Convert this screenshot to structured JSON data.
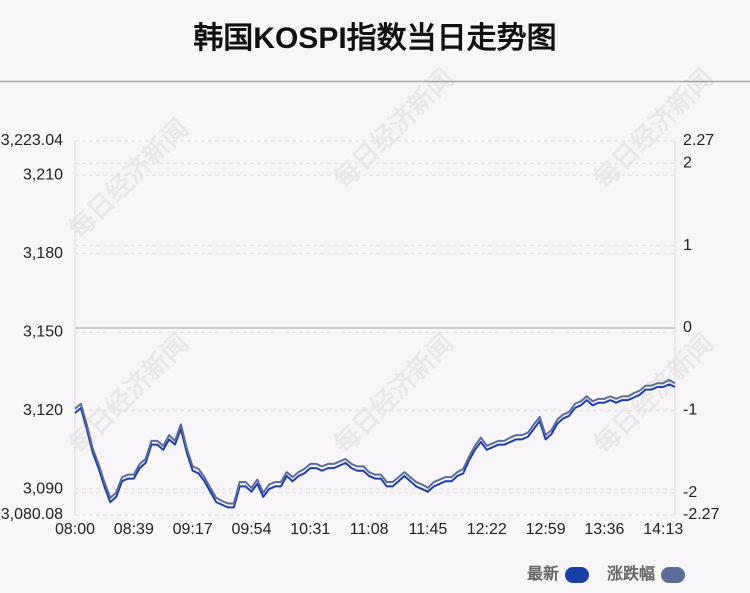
{
  "chart_data": {
    "type": "line",
    "title": "韩国KOSPI指数当日走势图",
    "watermark": "每日经济新闻",
    "categories": [
      "08:00",
      null,
      null,
      null,
      null,
      null,
      null,
      null,
      null,
      null,
      "08:39",
      null,
      null,
      null,
      null,
      null,
      null,
      null,
      null,
      null,
      "09:17",
      null,
      null,
      null,
      null,
      null,
      null,
      null,
      null,
      null,
      "09:54",
      null,
      null,
      null,
      null,
      null,
      null,
      null,
      null,
      null,
      "10:31",
      null,
      null,
      null,
      null,
      null,
      null,
      null,
      null,
      null,
      "11:08",
      null,
      null,
      null,
      null,
      null,
      null,
      null,
      null,
      null,
      "11:45",
      null,
      null,
      null,
      null,
      null,
      null,
      null,
      null,
      null,
      "12:22",
      null,
      null,
      null,
      null,
      null,
      null,
      null,
      null,
      null,
      "12:59",
      null,
      null,
      null,
      null,
      null,
      null,
      null,
      null,
      null,
      "13:36",
      null,
      null,
      null,
      null,
      null,
      null,
      null,
      null,
      null,
      "14:13",
      null,
      null
    ],
    "series": [
      {
        "name": "最新",
        "color": "#1a3fa8",
        "values": [
          3119,
          3121,
          3113,
          3104,
          3098,
          3091,
          3085,
          3087,
          3093,
          3094,
          3094,
          3098,
          3100,
          3107,
          3107,
          3105,
          3109,
          3107,
          3113,
          3104,
          3097,
          3096,
          3093,
          3089,
          3085,
          3084,
          3083,
          3083,
          3091,
          3091,
          3089,
          3092,
          3087,
          3090,
          3091,
          3091,
          3095,
          3093,
          3095,
          3096,
          3098,
          3098,
          3097,
          3098,
          3098,
          3099,
          3100,
          3098,
          3097,
          3097,
          3095,
          3094,
          3094,
          3091,
          3091,
          3093,
          3095,
          3093,
          3091,
          3090,
          3089,
          3091,
          3092,
          3093,
          3093,
          3095,
          3096,
          3101,
          3105,
          3108,
          3105,
          3106,
          3107,
          3107,
          3108,
          3109,
          3109,
          3110,
          3113,
          3116,
          3109,
          3111,
          3115,
          3117,
          3118,
          3121,
          3122,
          3124,
          3122,
          3123,
          3123,
          3124,
          3123,
          3124,
          3124,
          3125,
          3126,
          3128,
          3128,
          3129,
          3129,
          3130,
          3129
        ]
      },
      {
        "name": "涨跌幅",
        "color": "#5a6c99",
        "axis": "y2",
        "values": [
          -0.98,
          -0.92,
          -1.17,
          -1.46,
          -1.65,
          -1.87,
          -2.06,
          -2.0,
          -1.81,
          -1.78,
          -1.78,
          -1.65,
          -1.59,
          -1.37,
          -1.37,
          -1.43,
          -1.3,
          -1.37,
          -1.17,
          -1.46,
          -1.68,
          -1.71,
          -1.81,
          -1.94,
          -2.06,
          -2.1,
          -2.13,
          -2.13,
          -1.87,
          -1.87,
          -1.94,
          -1.84,
          -2.0,
          -1.9,
          -1.87,
          -1.87,
          -1.75,
          -1.81,
          -1.75,
          -1.71,
          -1.65,
          -1.65,
          -1.68,
          -1.65,
          -1.65,
          -1.62,
          -1.59,
          -1.65,
          -1.68,
          -1.68,
          -1.75,
          -1.78,
          -1.78,
          -1.87,
          -1.87,
          -1.81,
          -1.75,
          -1.81,
          -1.87,
          -1.9,
          -1.94,
          -1.87,
          -1.84,
          -1.81,
          -1.81,
          -1.75,
          -1.71,
          -1.56,
          -1.43,
          -1.33,
          -1.43,
          -1.4,
          -1.37,
          -1.37,
          -1.33,
          -1.3,
          -1.3,
          -1.27,
          -1.17,
          -1.08,
          -1.3,
          -1.24,
          -1.11,
          -1.05,
          -1.02,
          -0.92,
          -0.89,
          -0.83,
          -0.89,
          -0.86,
          -0.86,
          -0.83,
          -0.86,
          -0.83,
          -0.83,
          -0.79,
          -0.76,
          -0.7,
          -0.7,
          -0.67,
          -0.67,
          -0.63,
          -0.67
        ]
      }
    ],
    "ylim": [
      3080.08,
      3223.04
    ],
    "yticks": [
      {
        "value": 3080.08,
        "label": "3,080.08"
      },
      {
        "value": 3090,
        "label": "3,090"
      },
      {
        "value": 3120,
        "label": "3,120"
      },
      {
        "value": 3150,
        "label": "3,150"
      },
      {
        "value": 3180,
        "label": "3,180"
      },
      {
        "value": 3210,
        "label": "3,210"
      },
      {
        "value": 3223.04,
        "label": "3,223.04"
      }
    ],
    "y2lim": [
      -2.27,
      2.27
    ],
    "y2ticks": [
      -2.27,
      -2,
      -1,
      0,
      1,
      2,
      2.27
    ],
    "grid": true,
    "legend": "bottom-right"
  }
}
